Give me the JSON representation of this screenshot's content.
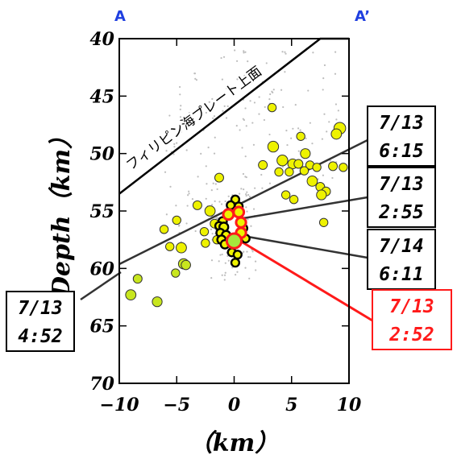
{
  "section": {
    "left_label": "A",
    "right_label": "A’"
  },
  "plate_label": "フィリピン海プレート上面",
  "colors": {
    "event_fill": "#eef200",
    "event_fill_alt": "#c8e61e",
    "mainshock_fill": "#a6e83c",
    "highlight": "#ff1a1a",
    "background_events": "#bdbdbd",
    "section_label": "#1f3fe0"
  },
  "event_labels": [
    {
      "id": "e1",
      "line1": "7/13",
      "line2": "6:15",
      "color": "black"
    },
    {
      "id": "e2",
      "line1": "7/13",
      "line2": "2:55",
      "color": "black"
    },
    {
      "id": "e3",
      "line1": "7/14",
      "line2": "6:11",
      "color": "black"
    },
    {
      "id": "e4",
      "line1": "7/13",
      "line2": "4:52",
      "color": "black"
    },
    {
      "id": "e5",
      "line1": "7/13",
      "line2": "2:52",
      "color": "red"
    }
  ],
  "chart_data": {
    "type": "scatter",
    "title": "",
    "xlabel": "（km）",
    "ylabel": "Depth（km）",
    "xlim": [
      -10,
      10
    ],
    "ylim": [
      70,
      40
    ],
    "y_inverted": true,
    "xticks": [
      -10,
      -5,
      0,
      5,
      10
    ],
    "xtick_labels": [
      "−10",
      "−5",
      "0",
      "5",
      "10"
    ],
    "yticks": [
      40,
      45,
      50,
      55,
      60,
      65,
      70
    ],
    "ytick_labels": [
      "40",
      "45",
      "50",
      "55",
      "60",
      "65",
      "70"
    ],
    "grid": false,
    "plate_boundary": {
      "x": [
        -10,
        7.5,
        10
      ],
      "y": [
        53.5,
        40,
        40
      ]
    },
    "events": [
      {
        "x": 3.3,
        "y": 46.0,
        "m": 0.9,
        "c": "y"
      },
      {
        "x": 9.2,
        "y": 47.8,
        "m": 1.6,
        "c": "y"
      },
      {
        "x": 8.9,
        "y": 48.3,
        "m": 1.3,
        "c": "y"
      },
      {
        "x": 5.8,
        "y": 48.5,
        "m": 0.9,
        "c": "y"
      },
      {
        "x": 3.4,
        "y": 49.4,
        "m": 1.4,
        "c": "y"
      },
      {
        "x": 6.2,
        "y": 50.0,
        "m": 1.2,
        "c": "y"
      },
      {
        "x": 4.2,
        "y": 50.6,
        "m": 1.4,
        "c": "y"
      },
      {
        "x": 2.5,
        "y": 51.0,
        "m": 1.0,
        "c": "y"
      },
      {
        "x": 5.1,
        "y": 50.9,
        "m": 1.2,
        "c": "y"
      },
      {
        "x": 5.6,
        "y": 50.9,
        "m": 1.0,
        "c": "y"
      },
      {
        "x": 6.6,
        "y": 51.0,
        "m": 0.9,
        "c": "y"
      },
      {
        "x": 7.2,
        "y": 51.2,
        "m": 0.9,
        "c": "y"
      },
      {
        "x": 8.6,
        "y": 51.1,
        "m": 1.0,
        "c": "y"
      },
      {
        "x": 9.5,
        "y": 51.2,
        "m": 0.9,
        "c": "y"
      },
      {
        "x": 3.9,
        "y": 51.6,
        "m": 0.9,
        "c": "y"
      },
      {
        "x": 4.8,
        "y": 51.6,
        "m": 0.9,
        "c": "y"
      },
      {
        "x": 6.1,
        "y": 51.5,
        "m": 0.9,
        "c": "y"
      },
      {
        "x": -1.3,
        "y": 52.1,
        "m": 1.0,
        "c": "y"
      },
      {
        "x": 6.8,
        "y": 52.4,
        "m": 1.3,
        "c": "y"
      },
      {
        "x": 7.5,
        "y": 52.9,
        "m": 1.0,
        "c": "y"
      },
      {
        "x": 8.0,
        "y": 53.3,
        "m": 1.0,
        "c": "y"
      },
      {
        "x": 7.6,
        "y": 53.6,
        "m": 1.2,
        "c": "y"
      },
      {
        "x": 4.5,
        "y": 53.6,
        "m": 0.9,
        "c": "y"
      },
      {
        "x": 5.2,
        "y": 54.0,
        "m": 0.9,
        "c": "y"
      },
      {
        "x": -3.2,
        "y": 54.5,
        "m": 1.0,
        "c": "y"
      },
      {
        "x": -2.1,
        "y": 55.0,
        "m": 1.3,
        "c": "y"
      },
      {
        "x": -5.0,
        "y": 55.8,
        "m": 0.9,
        "c": "y"
      },
      {
        "x": 7.8,
        "y": 56.0,
        "m": 0.9,
        "c": "y"
      },
      {
        "x": -1.7,
        "y": 56.1,
        "m": 1.0,
        "c": "y"
      },
      {
        "x": -6.1,
        "y": 56.6,
        "m": 0.9,
        "c": "y"
      },
      {
        "x": -2.6,
        "y": 56.8,
        "m": 0.9,
        "c": "y"
      },
      {
        "x": -2.5,
        "y": 57.8,
        "m": 0.9,
        "c": "y"
      },
      {
        "x": -5.6,
        "y": 58.1,
        "m": 0.9,
        "c": "y"
      },
      {
        "x": -1.5,
        "y": 57.5,
        "m": 0.9,
        "c": "y"
      },
      {
        "x": -4.6,
        "y": 58.2,
        "m": 1.3,
        "c": "y"
      },
      {
        "x": -4.4,
        "y": 59.6,
        "m": 1.3,
        "c": "g"
      },
      {
        "x": -4.2,
        "y": 59.7,
        "m": 1.1,
        "c": "g"
      },
      {
        "x": -5.1,
        "y": 60.4,
        "m": 0.9,
        "c": "g"
      },
      {
        "x": -8.4,
        "y": 60.9,
        "m": 1.0,
        "c": "g"
      },
      {
        "x": -9.0,
        "y": 62.3,
        "m": 1.3,
        "c": "g"
      },
      {
        "x": -6.7,
        "y": 62.9,
        "m": 1.2,
        "c": "g"
      },
      {
        "x": 0.1,
        "y": 54.0,
        "m": 0.8,
        "c": "k"
      },
      {
        "x": -0.3,
        "y": 54.5,
        "m": 0.8,
        "c": "k"
      },
      {
        "x": 0.4,
        "y": 54.6,
        "m": 0.8,
        "c": "k"
      },
      {
        "x": -0.6,
        "y": 55.4,
        "m": 0.9,
        "c": "k"
      },
      {
        "x": -1.0,
        "y": 55.9,
        "m": 0.9,
        "c": "k"
      },
      {
        "x": -1.3,
        "y": 56.3,
        "m": 0.8,
        "c": "k"
      },
      {
        "x": -0.9,
        "y": 56.4,
        "m": 1.0,
        "c": "k"
      },
      {
        "x": -1.2,
        "y": 56.9,
        "m": 0.8,
        "c": "k"
      },
      {
        "x": -0.7,
        "y": 57.1,
        "m": 0.9,
        "c": "k"
      },
      {
        "x": -1.1,
        "y": 57.5,
        "m": 0.9,
        "c": "k"
      },
      {
        "x": -0.8,
        "y": 57.9,
        "m": 0.9,
        "c": "k"
      },
      {
        "x": -0.2,
        "y": 58.6,
        "m": 0.8,
        "c": "k"
      },
      {
        "x": 0.3,
        "y": 58.8,
        "m": 0.8,
        "c": "k"
      },
      {
        "x": 0.1,
        "y": 59.5,
        "m": 0.8,
        "c": "k"
      },
      {
        "x": 1.0,
        "y": 57.4,
        "m": 0.8,
        "c": "k"
      },
      {
        "x": 0.8,
        "y": 56.5,
        "m": 0.8,
        "c": "k"
      },
      {
        "x": -0.5,
        "y": 55.3,
        "m": 1.3,
        "c": "ky",
        "ring": "red"
      },
      {
        "x": 0.4,
        "y": 55.1,
        "m": 1.3,
        "c": "ky",
        "ring": "red"
      },
      {
        "x": 0.6,
        "y": 56.0,
        "m": 1.2,
        "c": "ky",
        "ring": "red"
      },
      {
        "x": 0.6,
        "y": 56.9,
        "m": 1.2,
        "c": "ky",
        "ring": "red"
      },
      {
        "x": 0.0,
        "y": 57.6,
        "m": 2.2,
        "c": "g",
        "ring": "red"
      }
    ]
  }
}
